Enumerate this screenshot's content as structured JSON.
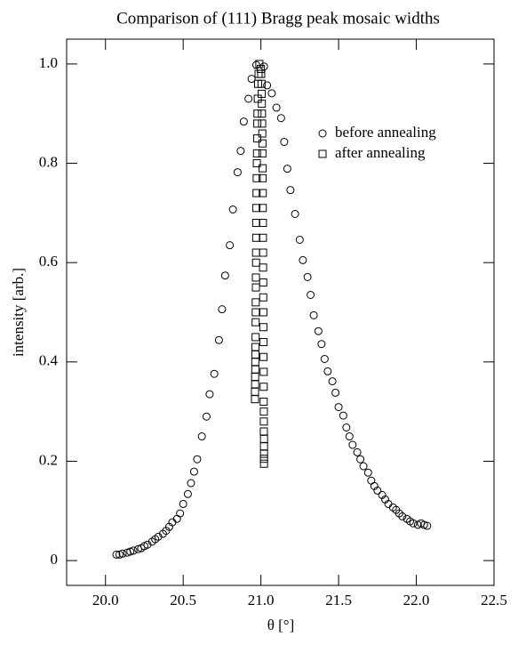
{
  "chart_data": {
    "type": "scatter",
    "title": "Comparison of (111) Bragg peak mosaic widths",
    "xlabel": "θ [°]",
    "ylabel": "intensity [arb.]",
    "xlim": [
      19.75,
      22.5
    ],
    "ylim": [
      -0.05,
      1.05
    ],
    "xticks": [
      {
        "value": 20,
        "label": "20.0"
      },
      20.5,
      {
        "value": 21,
        "label": "21.0"
      },
      21.5,
      {
        "value": 22,
        "label": "22.0"
      },
      22.5
    ],
    "yticks": [
      0,
      0.2,
      0.4,
      0.6,
      0.8,
      {
        "value": 1,
        "label": "1.0"
      }
    ],
    "grid": false,
    "legend": "upper right",
    "series": [
      {
        "name": "before annealing",
        "marker": "circle",
        "color": "#000000",
        "x": [
          20.07,
          20.09,
          20.11,
          20.14,
          20.16,
          20.18,
          20.21,
          20.23,
          20.25,
          20.27,
          20.3,
          20.32,
          20.34,
          20.37,
          20.39,
          20.41,
          20.43,
          20.46,
          20.48,
          20.5,
          20.53,
          20.55,
          20.57,
          20.59,
          20.62,
          20.65,
          20.67,
          20.7,
          20.73,
          20.75,
          20.77,
          20.8,
          20.82,
          20.85,
          20.87,
          20.89,
          20.92,
          20.94,
          20.97,
          21.02,
          21.04,
          21.07,
          21.1,
          21.13,
          21.15,
          21.17,
          21.19,
          21.22,
          21.25,
          21.27,
          21.3,
          21.32,
          21.34,
          21.37,
          21.39,
          21.41,
          21.43,
          21.46,
          21.48,
          21.5,
          21.53,
          21.55,
          21.57,
          21.59,
          21.62,
          21.64,
          21.66,
          21.69,
          21.71,
          21.73,
          21.75,
          21.78,
          21.8,
          21.82,
          21.85,
          21.87,
          21.89,
          21.91,
          21.94,
          21.96,
          21.98,
          22.01,
          22.03,
          22.05,
          22.07
        ],
        "values": [
          0.012,
          0.012,
          0.014,
          0.016,
          0.018,
          0.02,
          0.023,
          0.025,
          0.029,
          0.032,
          0.038,
          0.043,
          0.048,
          0.054,
          0.06,
          0.068,
          0.077,
          0.084,
          0.095,
          0.114,
          0.134,
          0.156,
          0.179,
          0.204,
          0.25,
          0.29,
          0.335,
          0.376,
          0.444,
          0.506,
          0.574,
          0.635,
          0.707,
          0.782,
          0.825,
          0.884,
          0.93,
          0.97,
          0.998,
          0.995,
          0.957,
          0.941,
          0.912,
          0.891,
          0.843,
          0.789,
          0.746,
          0.698,
          0.646,
          0.605,
          0.571,
          0.535,
          0.494,
          0.462,
          0.436,
          0.406,
          0.381,
          0.361,
          0.338,
          0.309,
          0.292,
          0.268,
          0.25,
          0.233,
          0.218,
          0.204,
          0.19,
          0.177,
          0.161,
          0.15,
          0.141,
          0.132,
          0.123,
          0.114,
          0.107,
          0.102,
          0.095,
          0.089,
          0.084,
          0.079,
          0.075,
          0.072,
          0.075,
          0.072,
          0.07
        ]
      },
      {
        "name": "after annealing",
        "marker": "square",
        "color": "#000000",
        "x": [
          20.962,
          20.962,
          20.963,
          20.963,
          20.964,
          20.964,
          20.965,
          20.965,
          20.966,
          20.966,
          20.967,
          20.967,
          20.968,
          20.968,
          20.969,
          20.969,
          20.97,
          20.97,
          20.971,
          20.972,
          20.973,
          20.974,
          20.975,
          20.976,
          20.977,
          20.978,
          20.98,
          20.982,
          20.985,
          20.99,
          21.0,
          21.002,
          21.004,
          21.005,
          21.006,
          21.007,
          21.008,
          21.009,
          21.01,
          21.01,
          21.011,
          21.011,
          21.012,
          21.012,
          21.013,
          21.013,
          21.014,
          21.014,
          21.015,
          21.015,
          21.016,
          21.016,
          21.017,
          21.017,
          21.018,
          21.018,
          21.018,
          21.019,
          21.019,
          21.019,
          21.02,
          21.02,
          21.02,
          21.02,
          21.02
        ],
        "values": [
          0.325,
          0.34,
          0.355,
          0.37,
          0.385,
          0.4,
          0.415,
          0.43,
          0.45,
          0.48,
          0.5,
          0.52,
          0.55,
          0.57,
          0.6,
          0.62,
          0.65,
          0.68,
          0.71,
          0.74,
          0.77,
          0.8,
          0.82,
          0.85,
          0.88,
          0.9,
          0.93,
          0.96,
          0.98,
          1.0,
          0.99,
          0.98,
          0.96,
          0.94,
          0.92,
          0.9,
          0.88,
          0.86,
          0.84,
          0.82,
          0.79,
          0.77,
          0.74,
          0.71,
          0.68,
          0.65,
          0.62,
          0.59,
          0.56,
          0.53,
          0.5,
          0.47,
          0.44,
          0.41,
          0.38,
          0.35,
          0.32,
          0.3,
          0.28,
          0.26,
          0.245,
          0.23,
          0.215,
          0.205,
          0.195
        ]
      }
    ]
  }
}
